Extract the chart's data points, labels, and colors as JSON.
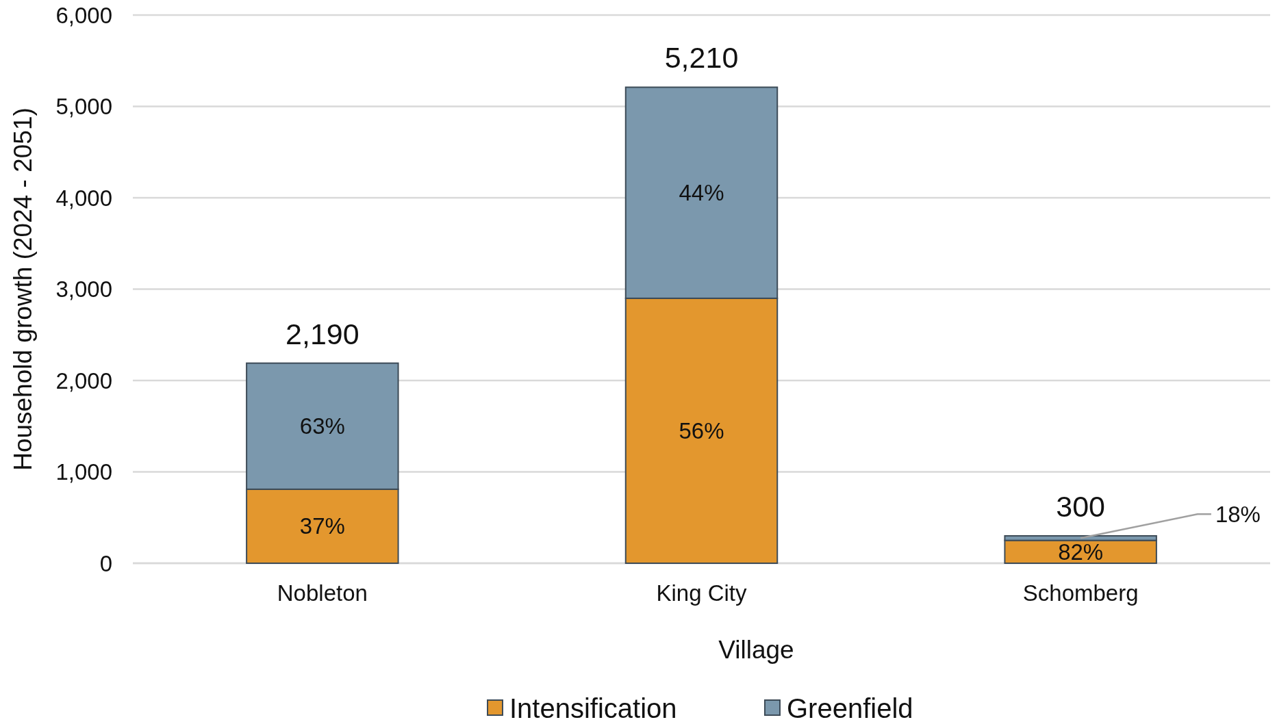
{
  "chart_data": {
    "type": "bar",
    "stacked": true,
    "xlabel": "Village",
    "ylabel": "Household growth (2024 - 2051)",
    "categories": [
      "Nobleton",
      "King City",
      "Schomberg"
    ],
    "series": [
      {
        "name": "Intensification",
        "color": "#e3972e",
        "values": [
          810,
          2900,
          250
        ]
      },
      {
        "name": "Greenfield",
        "color": "#7b98ad",
        "values": [
          1380,
          2310,
          50
        ]
      }
    ],
    "annotations": [
      "37%",
      "63%",
      "56%",
      "44%",
      "82%",
      {
        "text": "18%",
        "x": "Schomberg",
        "y": 275
      }
    ],
    "totals": [
      "2,190",
      "5,210",
      "300"
    ],
    "ylim": [
      0,
      6000
    ],
    "yticks": [
      {
        "value": 0,
        "label": "0"
      },
      {
        "value": 1000,
        "label": "1,000"
      },
      {
        "value": 2000,
        "label": "2,000"
      },
      {
        "value": 3000,
        "label": "3,000"
      },
      {
        "value": 4000,
        "label": "4,000"
      },
      {
        "value": 5000,
        "label": "5,000"
      },
      {
        "value": 6000,
        "label": "6,000"
      }
    ],
    "grid": "y",
    "legend": "bottom"
  }
}
